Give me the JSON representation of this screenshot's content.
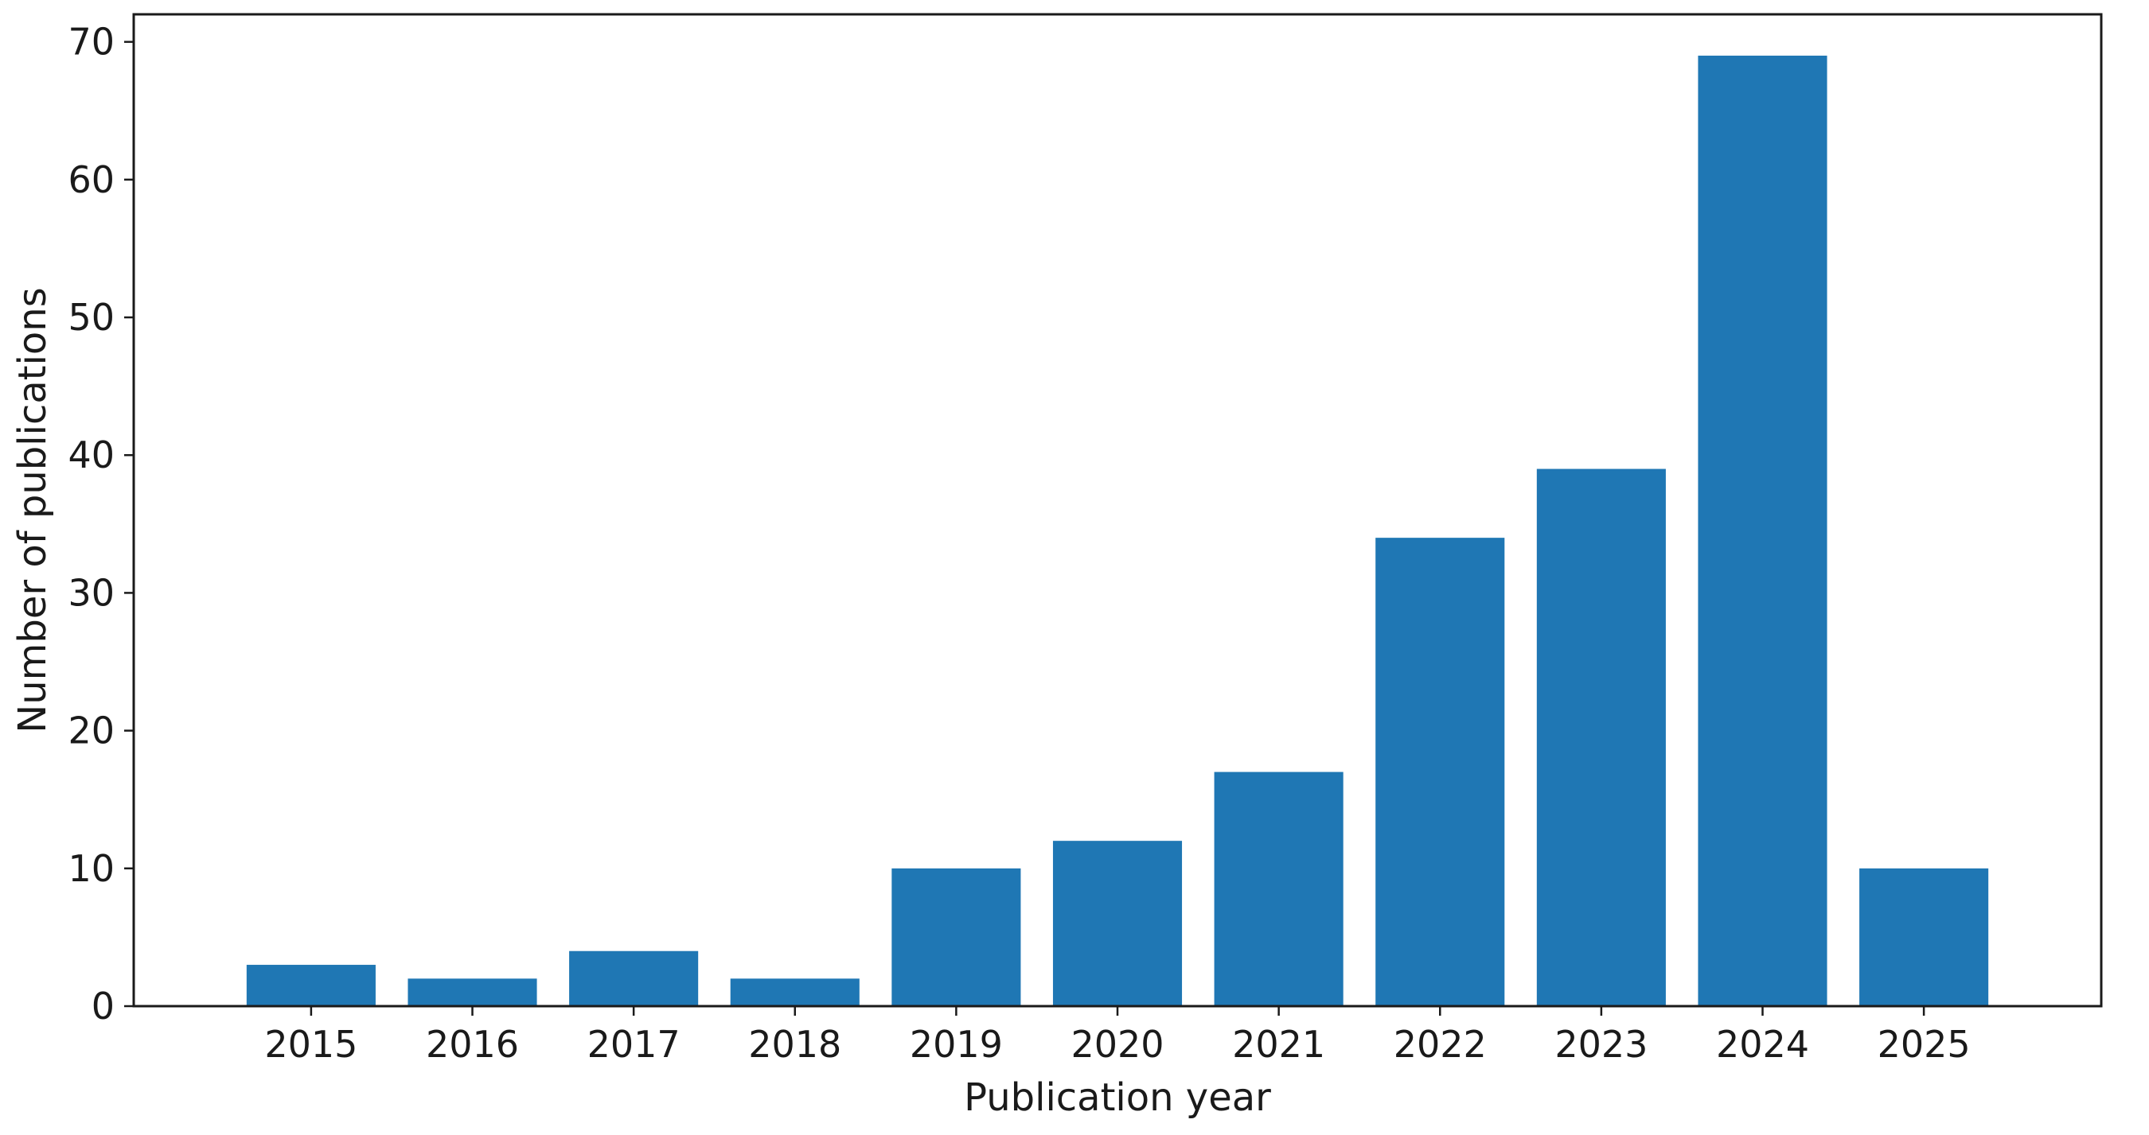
{
  "chart_data": {
    "type": "bar",
    "categories": [
      "2015",
      "2016",
      "2017",
      "2018",
      "2019",
      "2020",
      "2021",
      "2022",
      "2023",
      "2024",
      "2025"
    ],
    "values": [
      3,
      2,
      4,
      2,
      10,
      12,
      17,
      34,
      39,
      69,
      10
    ],
    "xlabel": "Publication year",
    "ylabel": "Number of publications",
    "ylim": [
      0,
      72
    ],
    "yticks": [
      0,
      10,
      20,
      30,
      40,
      50,
      60,
      70
    ],
    "bar_color": "#1f77b4",
    "grid": false,
    "legend": "none"
  }
}
